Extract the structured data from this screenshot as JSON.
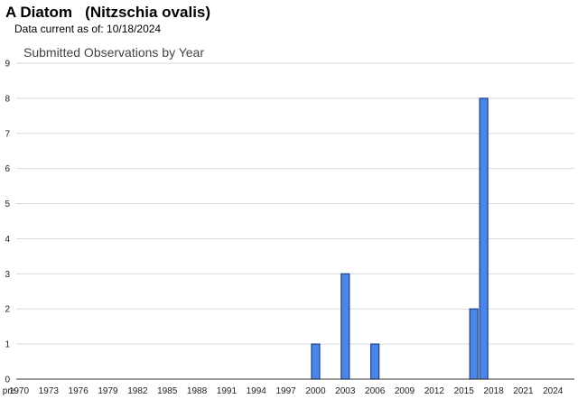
{
  "header": {
    "title": "A Diatom   (Nitzschia ovalis)",
    "subtitle": "Data current as of: 10/18/2024"
  },
  "chart_data": {
    "type": "bar",
    "title": "Submitted Observations by Year",
    "xlabel": "",
    "ylabel": "",
    "ylim": [
      0,
      9
    ],
    "yticks": [
      0,
      1,
      2,
      3,
      4,
      5,
      6,
      7,
      8,
      9
    ],
    "grid": true,
    "categories": [
      "pre",
      "1970",
      "1971",
      "1972",
      "1973",
      "1974",
      "1975",
      "1976",
      "1977",
      "1978",
      "1979",
      "1980",
      "1981",
      "1982",
      "1983",
      "1984",
      "1985",
      "1986",
      "1987",
      "1988",
      "1989",
      "1990",
      "1991",
      "1992",
      "1993",
      "1994",
      "1995",
      "1996",
      "1997",
      "1998",
      "1999",
      "2000",
      "2001",
      "2002",
      "2003",
      "2004",
      "2005",
      "2006",
      "2007",
      "2008",
      "2009",
      "2010",
      "2011",
      "2012",
      "2013",
      "2014",
      "2015",
      "2016",
      "2017",
      "2018",
      "2019",
      "2020",
      "2021",
      "2022",
      "2023",
      "2024",
      "2025"
    ],
    "tick_labels": [
      "pre",
      "1970",
      "",
      "",
      "1973",
      "",
      "",
      "1976",
      "",
      "",
      "1979",
      "",
      "",
      "1982",
      "",
      "",
      "1985",
      "",
      "",
      "1988",
      "",
      "",
      "1991",
      "",
      "",
      "1994",
      "",
      "",
      "1997",
      "",
      "",
      "2000",
      "",
      "",
      "2003",
      "",
      "",
      "2006",
      "",
      "",
      "2009",
      "",
      "",
      "2012",
      "",
      "",
      "2015",
      "",
      "",
      "2018",
      "",
      "",
      "2021",
      "",
      "",
      "2024",
      ""
    ],
    "values": [
      0,
      0,
      0,
      0,
      0,
      0,
      0,
      0,
      0,
      0,
      0,
      0,
      0,
      0,
      0,
      0,
      0,
      0,
      0,
      0,
      0,
      0,
      0,
      0,
      0,
      0,
      0,
      0,
      0,
      0,
      0,
      1,
      0,
      0,
      3,
      0,
      0,
      1,
      0,
      0,
      0,
      0,
      0,
      0,
      0,
      0,
      0,
      2,
      8,
      0,
      0,
      0,
      0,
      0,
      0,
      0,
      0
    ],
    "colors": {
      "bar_fill": "#4a86e8",
      "bar_stroke": "#1f3f8a",
      "grid": "#d9d9d9"
    }
  }
}
